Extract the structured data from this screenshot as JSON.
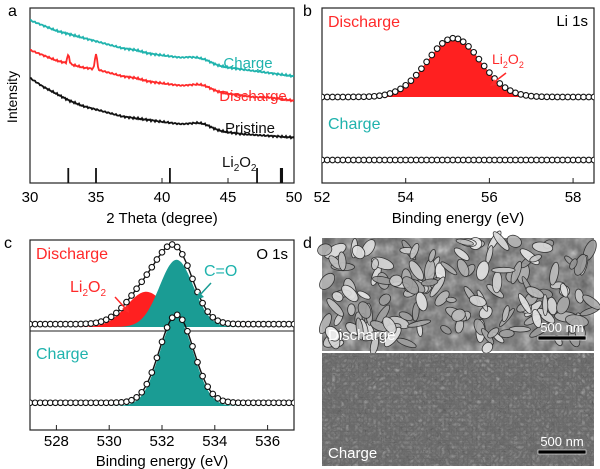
{
  "colors": {
    "teal": "#1fb3ad",
    "red": "#ff2a2a",
    "black": "#111111",
    "fill_red": "#ff2020",
    "fill_teal": "#1a9c94",
    "gray_sem": "#6e6e6e"
  },
  "chart_data": [
    {
      "panel": "a",
      "type": "line",
      "title": "",
      "xlabel": "2 Theta (degree)",
      "ylabel": "Intensity",
      "xlim": [
        30,
        50
      ],
      "xticks": [
        30,
        35,
        40,
        45,
        50
      ],
      "series": [
        {
          "name": "Charge",
          "color": "#1fb3ad",
          "x": [
            30,
            31,
            32,
            33,
            34,
            35,
            36,
            37,
            38,
            39,
            40,
            41,
            42,
            43,
            44,
            45,
            46,
            47,
            48,
            49,
            50
          ],
          "y": [
            0.93,
            0.9,
            0.87,
            0.85,
            0.83,
            0.81,
            0.79,
            0.77,
            0.76,
            0.74,
            0.73,
            0.72,
            0.71,
            0.68,
            0.67,
            0.66,
            0.65,
            0.64,
            0.63,
            0.62,
            0.61
          ]
        },
        {
          "name": "Discharge",
          "color": "#ff2a2a",
          "x": [
            30,
            31,
            32,
            33,
            34,
            35,
            36,
            37,
            38,
            39,
            40,
            41,
            42,
            43,
            44,
            45,
            46,
            47,
            48,
            49,
            50
          ],
          "y": [
            0.76,
            0.73,
            0.7,
            0.68,
            0.66,
            0.65,
            0.63,
            0.61,
            0.6,
            0.58,
            0.57,
            0.56,
            0.55,
            0.53,
            0.52,
            0.51,
            0.5,
            0.49,
            0.49,
            0.48,
            0.47
          ]
        },
        {
          "name": "Pristine",
          "color": "#111111",
          "x": [
            30,
            31,
            32,
            33,
            34,
            35,
            36,
            37,
            38,
            39,
            40,
            41,
            42,
            43,
            44,
            45,
            46,
            47,
            48,
            49,
            50
          ],
          "y": [
            0.6,
            0.55,
            0.51,
            0.47,
            0.44,
            0.42,
            0.4,
            0.38,
            0.37,
            0.36,
            0.35,
            0.34,
            0.33,
            0.31,
            0.3,
            0.29,
            0.28,
            0.275,
            0.27,
            0.265,
            0.26
          ]
        }
      ],
      "reference": {
        "name": "Li2O2",
        "label_main": "Li",
        "label_sub1": "2",
        "label_mid": "O",
        "label_sub2": "2",
        "peaks": [
          32.9,
          35.0,
          40.6,
          47.2,
          49.0,
          49.1
        ]
      },
      "legend_labels": {
        "charge": "Charge",
        "discharge": "Discharge",
        "pristine": "Pristine"
      }
    },
    {
      "panel": "b",
      "type": "area",
      "title": "Li 1s",
      "xlabel": "Binding energy (eV)",
      "xlim": [
        52,
        58.5
      ],
      "xticks": [
        52,
        54,
        56,
        58
      ],
      "series": [
        {
          "name": "Discharge",
          "peak_center": 55.15,
          "peak_height": 0.42,
          "peak_width": 0.95,
          "baseline": 0.0,
          "component": "Li2O2"
        },
        {
          "name": "Charge",
          "baseline": 0.0,
          "flat": true
        }
      ],
      "labels": {
        "discharge": "Discharge",
        "charge": "Charge",
        "comp_main": "Li",
        "comp_sub1": "2",
        "comp_mid": "O",
        "comp_sub2": "2"
      }
    },
    {
      "panel": "c",
      "type": "area",
      "title": "O 1s",
      "xlabel": "Binding energy (eV)",
      "xlim": [
        527,
        537
      ],
      "xticks": [
        528,
        530,
        532,
        534,
        536
      ],
      "series": [
        {
          "name": "Discharge",
          "components": [
            {
              "name": "Li2O2",
              "center": 531.4,
              "height": 0.22,
              "width": 1.1
            },
            {
              "name": "C=O",
              "center": 532.55,
              "height": 0.42,
              "width": 0.95
            }
          ]
        },
        {
          "name": "Charge",
          "components": [
            {
              "name": "C=O",
              "center": 532.55,
              "height": 0.55,
              "width": 0.95
            }
          ]
        }
      ],
      "labels": {
        "discharge": "Discharge",
        "charge": "Charge",
        "co": "C=O",
        "comp_main": "Li",
        "comp_sub1": "2",
        "comp_mid": "O",
        "comp_sub2": "2"
      }
    },
    {
      "panel": "d",
      "type": "image",
      "labels": {
        "top": "Discharge",
        "bottom": "Charge",
        "scale_top": "500 nm",
        "scale_bottom": "500 nm"
      }
    }
  ],
  "panel_letters": {
    "a": "a",
    "b": "b",
    "c": "c",
    "d": "d"
  }
}
